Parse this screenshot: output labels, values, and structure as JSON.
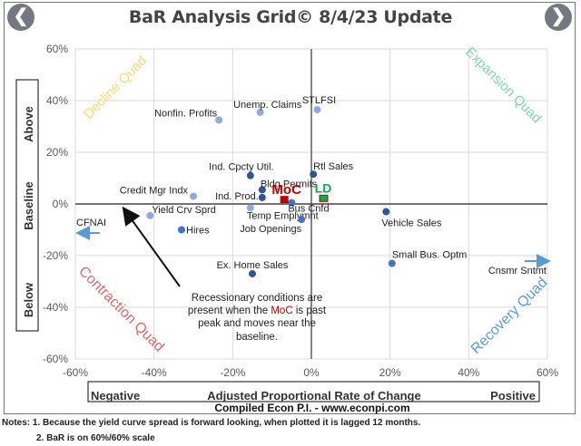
{
  "header": {
    "title": "BaR Analysis Grid© 8/4/23 Update",
    "prev_icon": "chevron-left-icon",
    "next_icon": "chevron-right-icon"
  },
  "y_side_box": {
    "above": "Above",
    "baseline": "Baseline",
    "below": "Below"
  },
  "x_bottom_box": {
    "negative": "Negative",
    "center": "Adjusted Proportional Rate of Change",
    "positive": "Positive"
  },
  "credit": "Compiled Econ P.I. - www.econpi.com",
  "notes": {
    "line1": "Notes: 1. Because the yield curve spread is forward looking, when plotted it is lagged 12 months.",
    "line2": "2. BaR is on 60%/60% scale"
  },
  "annotation": {
    "pre": "Recessionary conditions are present when the ",
    "highlight": "MoC",
    "post": " is past peak and moves near the baseline."
  },
  "quadrants": {
    "decline": {
      "label": "Decline Quad",
      "color": "#FFD966"
    },
    "expansion": {
      "label": "Expansion Quad",
      "color": "#7FD9A6"
    },
    "contraction": {
      "label": "Contraction Quad",
      "color": "#E06666"
    },
    "recovery": {
      "label": "Recovery Quad",
      "color": "#5B9BD5"
    }
  },
  "chart_data": {
    "type": "scatter",
    "title": "BaR Analysis Grid© 8/4/23 Update",
    "xlabel": "Adjusted Proportional Rate of Change",
    "ylabel": "Below / Baseline / Above",
    "xlim": [
      -60,
      60
    ],
    "ylim": [
      -60,
      60
    ],
    "x_ticks": [
      "-60%",
      "-40%",
      "-20%",
      "0%",
      "20%",
      "40%",
      "60%"
    ],
    "y_ticks": [
      "60%",
      "40%",
      "20%",
      "0%",
      "-20%",
      "-40%",
      "-60%"
    ],
    "grid": true,
    "points": [
      {
        "name": "Nonfin. Profits",
        "x": -23.5,
        "y": 32.5,
        "shade": "light"
      },
      {
        "name": "Unemp. Claims",
        "x": -13,
        "y": 35.5,
        "shade": "light"
      },
      {
        "name": "STLFSI",
        "x": 1.5,
        "y": 36.5,
        "shade": "light"
      },
      {
        "name": "Ind. Cpcty Util.",
        "x": -15.5,
        "y": 11,
        "shade": "dark"
      },
      {
        "name": "Rtl Sales",
        "x": 0.5,
        "y": 11.5,
        "shade": "dark"
      },
      {
        "name": "Bldg Permits",
        "x": -12.5,
        "y": 5.5,
        "shade": "dark"
      },
      {
        "name": "Credit Mgr Indx",
        "x": -30,
        "y": 3,
        "shade": "light"
      },
      {
        "name": "Ind. Prod.",
        "x": -12.5,
        "y": 2.5,
        "shade": "dark"
      },
      {
        "name": "Bus Cnfd",
        "x": -5,
        "y": 0.5,
        "shade": "medium"
      },
      {
        "name": "Temp Emplymnt",
        "x": -15.5,
        "y": -1.5,
        "shade": "light"
      },
      {
        "name": "Yield Crv Sprd",
        "x": -41,
        "y": -4.5,
        "shade": "light"
      },
      {
        "name": "Job Openings",
        "x": -2.5,
        "y": -6,
        "shade": "medium"
      },
      {
        "name": "Hires",
        "x": -33,
        "y": -10,
        "shade": "medium"
      },
      {
        "name": "Vehicle Sales",
        "x": 19,
        "y": -3,
        "shade": "dark"
      },
      {
        "name": "Small Bus. Optm",
        "x": 20.5,
        "y": -23,
        "shade": "medium"
      },
      {
        "name": "Ex. Home Sales",
        "x": -15,
        "y": -27,
        "shade": "dark"
      }
    ],
    "markers": [
      {
        "name": "MoC",
        "x": -7,
        "y": 1,
        "color": "#C00000",
        "shape": "square"
      },
      {
        "name": "LD",
        "x": 3,
        "y": 2,
        "color": "#00B050",
        "shape": "square"
      }
    ],
    "off_scale": [
      {
        "name": "CFNAI",
        "direction": "left",
        "y": -11
      },
      {
        "name": "Cnsmr Sntmt",
        "direction": "right",
        "y": -25
      }
    ]
  },
  "colors": {
    "dark": "#2F5597",
    "medium": "#4472C4",
    "light": "#8FAADC",
    "moc": "#C00000",
    "ld": "#00B050",
    "grid": "#D9D9D9",
    "axis": "#595959"
  }
}
